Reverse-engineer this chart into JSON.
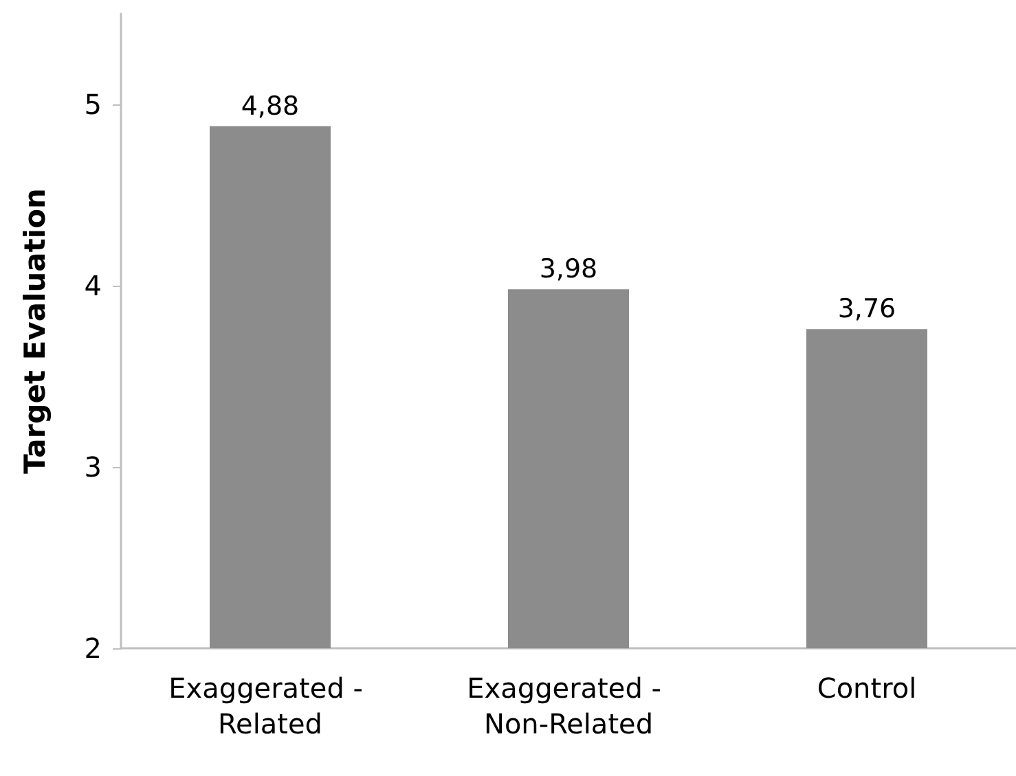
{
  "chart_data": {
    "type": "bar",
    "ylabel": "Target Evaluation",
    "categories": [
      "Exaggerated - Related",
      "Exaggerated - Non-Related",
      "Control"
    ],
    "values": [
      4.88,
      3.98,
      3.76
    ],
    "value_labels": [
      "4,88",
      "3,98",
      "3,76"
    ],
    "color": "#8c8c8c",
    "ylim": [
      2,
      5.5
    ],
    "yticks": [
      2,
      3,
      4,
      5
    ],
    "grid": false
  }
}
